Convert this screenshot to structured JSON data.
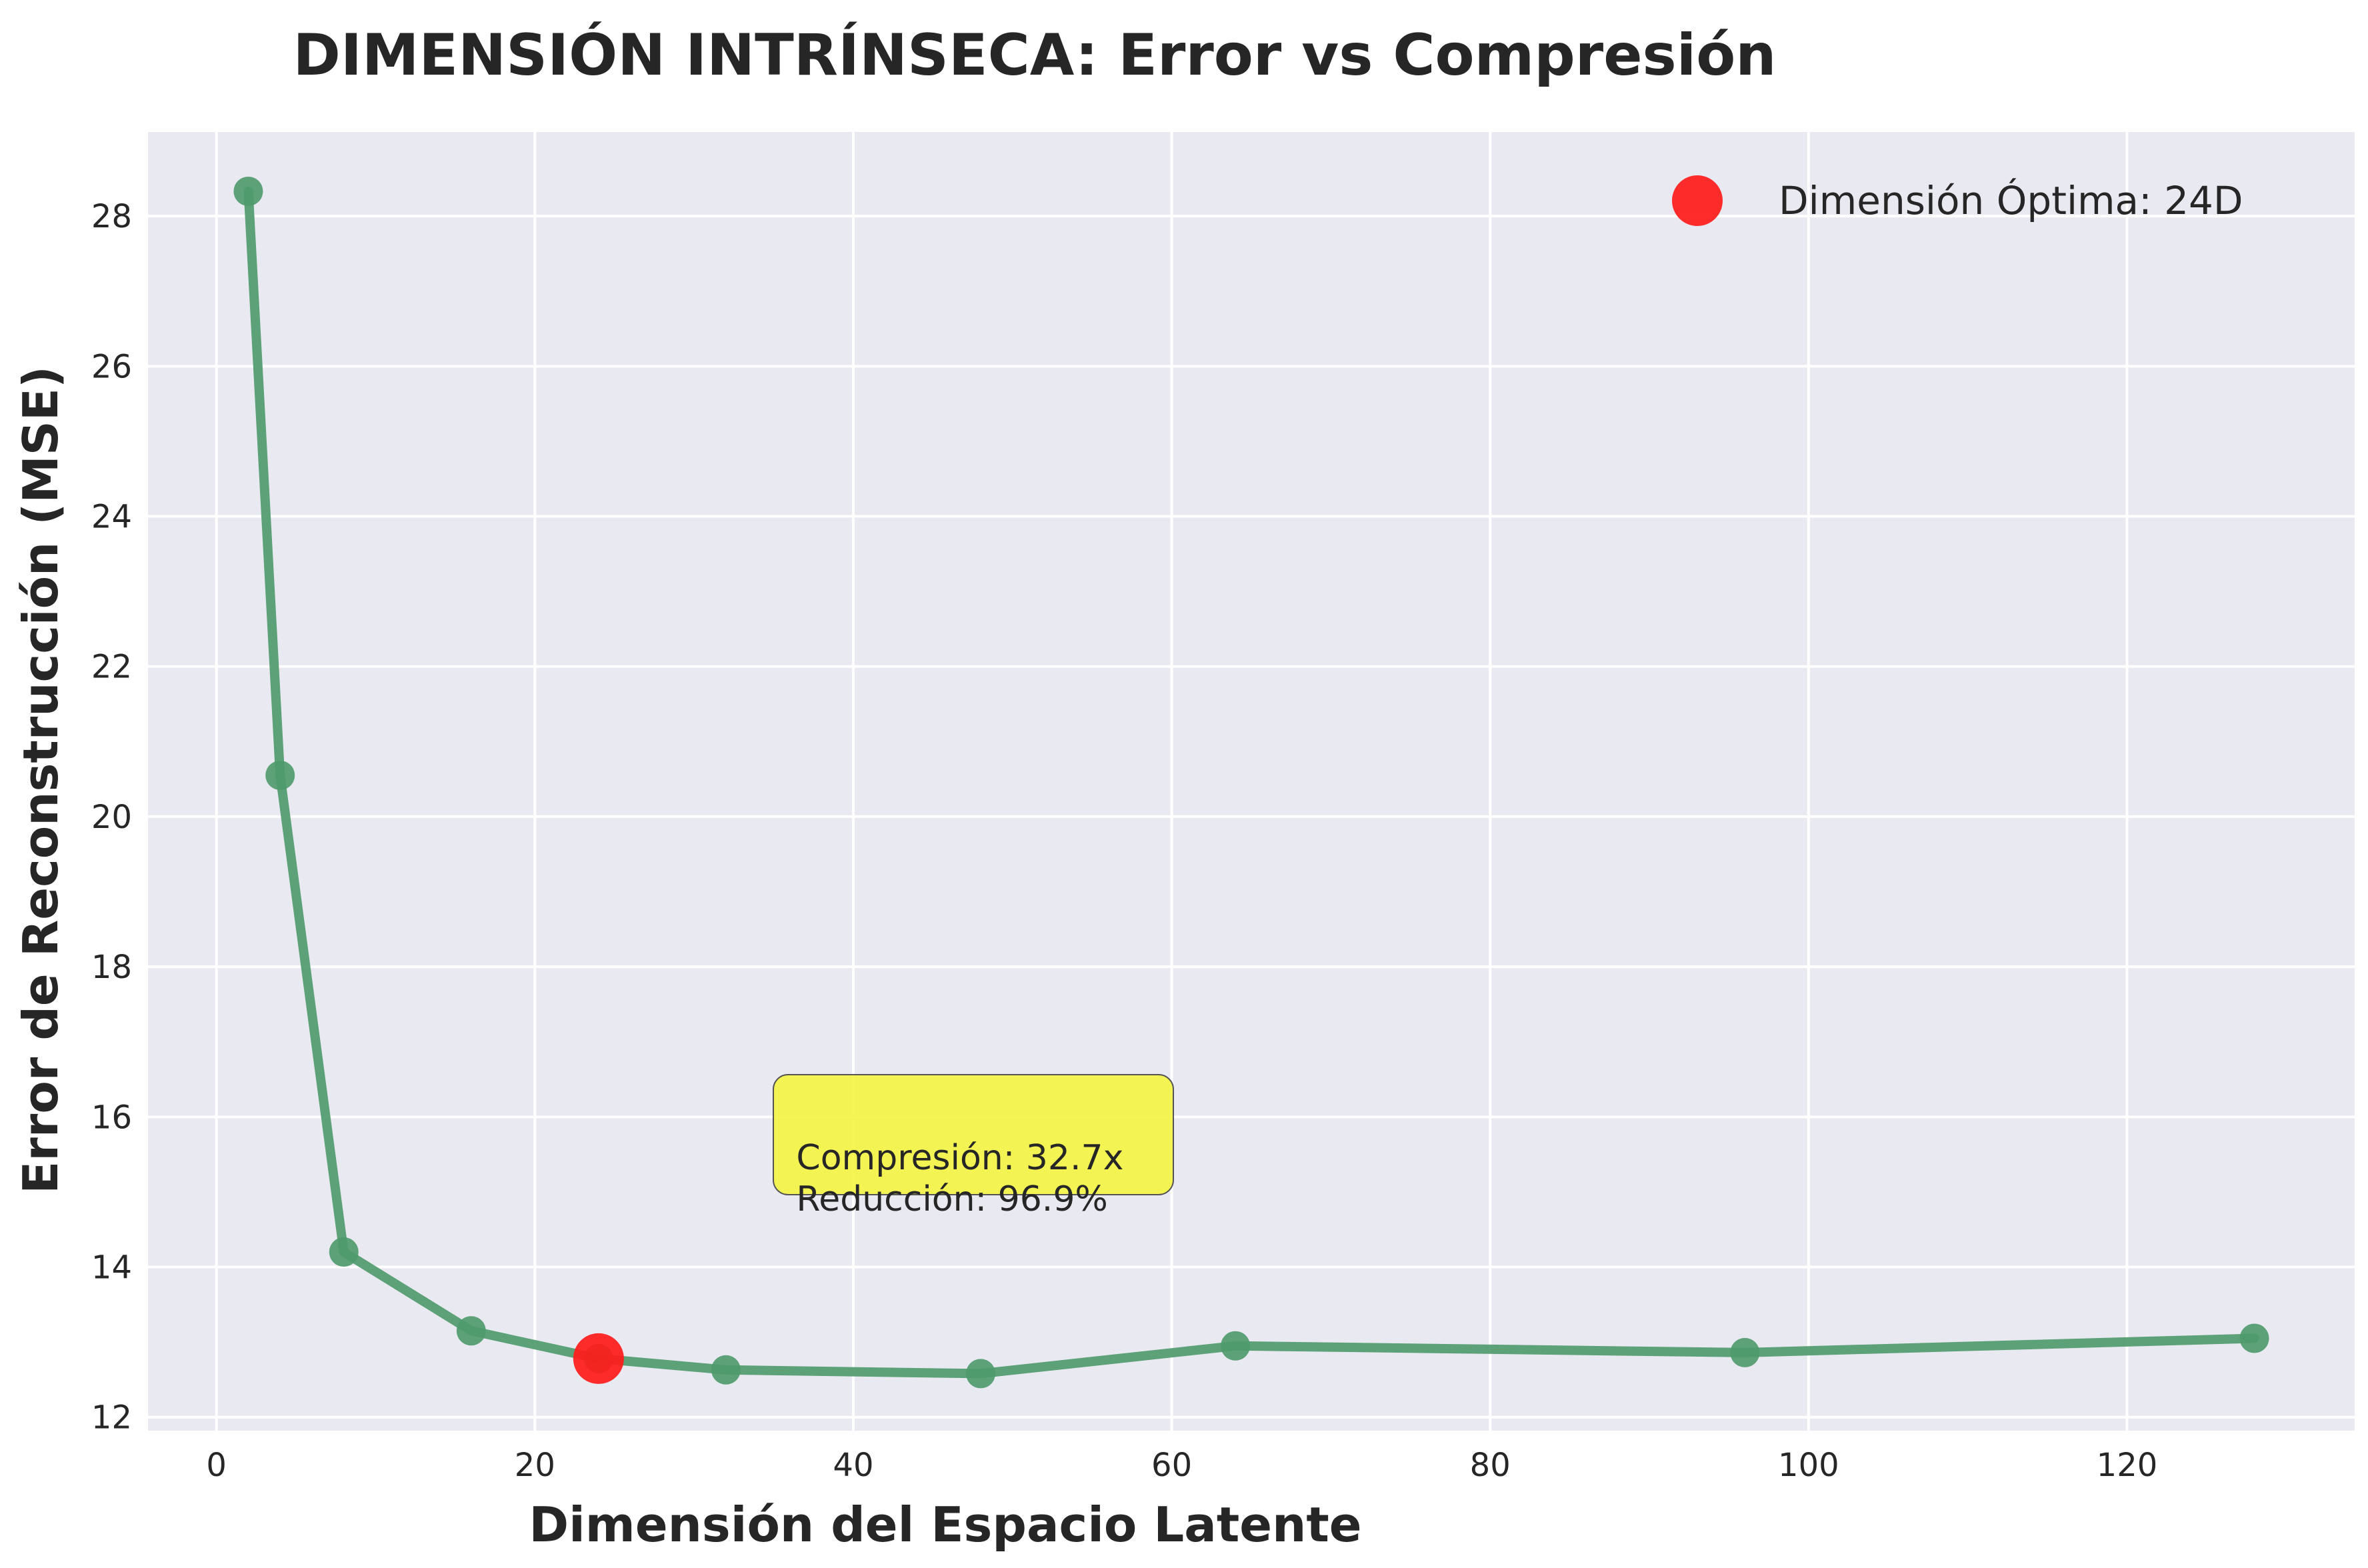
{
  "chart_data": {
    "type": "line",
    "title": "DIMENSIÓN INTRÍNSECA: Error vs Compresión",
    "xlabel": "Dimensión del Espacio Latente",
    "ylabel": "Error de Reconstrucción (MSE)",
    "xlim": [
      -4.3,
      134.3
    ],
    "ylim": [
      11.82,
      29.12
    ],
    "xticks": [
      0,
      20,
      40,
      60,
      80,
      100,
      120
    ],
    "yticks": [
      12,
      14,
      16,
      18,
      20,
      22,
      24,
      26,
      28
    ],
    "grid": true,
    "legend_position": "top-right",
    "series": [
      {
        "x": [
          2,
          4,
          8,
          16,
          24,
          32,
          48,
          64,
          96,
          128
        ],
        "y": [
          28.33,
          20.55,
          14.2,
          13.15,
          12.78,
          12.63,
          12.58,
          12.95,
          12.86,
          13.05
        ],
        "color": "#4f9a6d"
      }
    ],
    "highlight": {
      "name": "Dimensión Óptima: 24D",
      "x": 24,
      "y": 12.78,
      "color": "#ff1a1a"
    },
    "annotation": {
      "lines": [
        "Compresión: 32.7x",
        "Reducción: 96.9%"
      ],
      "x": 36,
      "y": 15.7,
      "background": "#f5f542"
    },
    "colors": {
      "plot_background": "#e9e9f1",
      "grid": "#ffffff"
    }
  }
}
